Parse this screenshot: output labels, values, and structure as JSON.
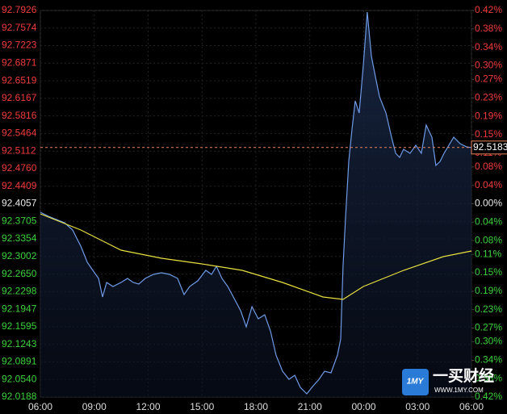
{
  "chart_data": {
    "type": "line",
    "xlim": [
      0,
      24
    ],
    "xticks": [
      {
        "value": 0,
        "label": "06:00"
      },
      {
        "value": 3,
        "label": "09:00"
      },
      {
        "value": 6,
        "label": "12:00"
      },
      {
        "value": 9,
        "label": "15:00"
      },
      {
        "value": 12,
        "label": "18:00"
      },
      {
        "value": 15,
        "label": "21:00"
      },
      {
        "value": 18,
        "label": "00:00"
      },
      {
        "value": 21,
        "label": "03:00"
      },
      {
        "value": 24,
        "label": "06:00"
      }
    ],
    "ylim": [
      92.0188,
      92.7926
    ],
    "yticks": [
      92.7926,
      92.7574,
      92.7223,
      92.6871,
      92.6519,
      92.6167,
      92.5816,
      92.5464,
      92.5112,
      {
        "value": 92.476,
        "label": "92.4760"
      },
      92.4409,
      92.4057,
      92.3705,
      92.3354,
      92.3002,
      {
        "value": 92.265,
        "label": "92.2650"
      },
      92.2298,
      92.1947,
      92.1595,
      92.1243,
      92.0891,
      {
        "value": 92.054,
        "label": "92.0540"
      },
      92.0188
    ],
    "y2lim": [
      -0.42,
      0.42
    ],
    "y2ticks": [
      {
        "value": 0.42,
        "label": "0.42%"
      },
      {
        "value": 0.38,
        "label": "0.38%"
      },
      {
        "value": 0.34,
        "label": "0.34%"
      },
      {
        "value": 0.3,
        "label": "0.30%"
      },
      {
        "value": 0.27,
        "label": "0.27%"
      },
      {
        "value": 0.23,
        "label": "0.23%"
      },
      {
        "value": 0.19,
        "label": "0.19%"
      },
      {
        "value": 0.15,
        "label": "0.15%"
      },
      {
        "value": 0.11,
        "label": "0.11%"
      },
      {
        "value": 0.08,
        "label": "0.08%"
      },
      {
        "value": 0.04,
        "label": "0.04%"
      },
      {
        "value": 0,
        "label": "0.00%"
      },
      {
        "value": -0.04,
        "label": "0.04%"
      },
      {
        "value": -0.08,
        "label": "0.08%"
      },
      {
        "value": -0.11,
        "label": "0.11%"
      },
      {
        "value": -0.15,
        "label": "0.15%"
      },
      {
        "value": -0.19,
        "label": "0.19%"
      },
      {
        "value": -0.23,
        "label": "0.23%"
      },
      {
        "value": -0.27,
        "label": "0.27%"
      },
      {
        "value": -0.3,
        "label": "0.30%"
      },
      {
        "value": -0.34,
        "label": "0.34%"
      },
      {
        "value": -0.38,
        "label": "0.38%"
      },
      {
        "value": -0.42,
        "label": "0.42%"
      }
    ],
    "grid": true,
    "last_price": 92.5183,
    "series": [
      {
        "color": "#6f9be8",
        "fill": true,
        "x": [
          0,
          0.45,
          0.9,
          1.35,
          1.8,
          2.02,
          2.25,
          2.61,
          2.92,
          3.24,
          3.46,
          3.69,
          4.04,
          4.49,
          4.85,
          5.17,
          5.48,
          5.84,
          6.29,
          6.74,
          7.19,
          7.64,
          8,
          8.31,
          8.76,
          9.21,
          9.53,
          9.8,
          10.11,
          10.43,
          10.79,
          11.15,
          11.46,
          11.78,
          12.13,
          12.49,
          12.81,
          13.12,
          13.48,
          13.84,
          14.16,
          14.47,
          14.83,
          15.19,
          15.51,
          15.82,
          16.18,
          16.54,
          16.72,
          16.85,
          16.99,
          17.17,
          17.35,
          17.53,
          17.75,
          17.98,
          18.2,
          18.43,
          18.65,
          18.88,
          19.24,
          19.55,
          19.78,
          20,
          20.22,
          20.58,
          20.9,
          21.21,
          21.48,
          21.8,
          22.02,
          22.25,
          22.47,
          22.74,
          23.01,
          23.37,
          23.73,
          24
        ],
        "values": [
          92.3887,
          92.3806,
          92.3742,
          92.3677,
          92.3532,
          92.337,
          92.3209,
          92.2886,
          92.2724,
          92.2563,
          92.2191,
          92.2482,
          92.2401,
          92.2482,
          92.2563,
          92.2482,
          92.2449,
          92.2563,
          92.2643,
          92.2676,
          92.2643,
          92.2563,
          92.2239,
          92.2401,
          92.2514,
          92.2724,
          92.2643,
          92.2805,
          92.2563,
          92.2401,
          92.2159,
          92.1916,
          92.1593,
          92.1997,
          92.1755,
          92.1836,
          92.1512,
          92.1028,
          92.0705,
          92.0543,
          92.0624,
          92.0382,
          92.0252,
          92.0414,
          92.0543,
          92.0705,
          92.0672,
          92.1028,
          92.1351,
          92.2805,
          92.3774,
          92.4905,
          92.5551,
          92.6117,
          92.5874,
          92.6844,
          92.7894,
          92.7005,
          92.6601,
          92.6197,
          92.5874,
          92.539,
          92.5067,
          92.4986,
          92.5147,
          92.5067,
          92.5228,
          92.5067,
          92.5632,
          92.539,
          92.4824,
          92.4905,
          92.5067,
          92.5228,
          92.539,
          92.526,
          92.5196,
          92.5183
        ]
      },
      {
        "color": "#e8e040",
        "fill": false,
        "x": [
          0,
          2.25,
          4.49,
          6.74,
          8.99,
          11.24,
          13.48,
          15.73,
          16.85,
          17.98,
          20.22,
          22.43,
          24
        ],
        "values": [
          92.3855,
          92.3532,
          92.3128,
          92.2966,
          92.2853,
          92.2724,
          92.2482,
          92.2191,
          92.2143,
          92.2401,
          92.2724,
          92.2999,
          92.3112
        ]
      }
    ]
  },
  "watermark": {
    "logo": "1MY",
    "title": "一买财经",
    "url": "WWW.1MY.COM"
  }
}
